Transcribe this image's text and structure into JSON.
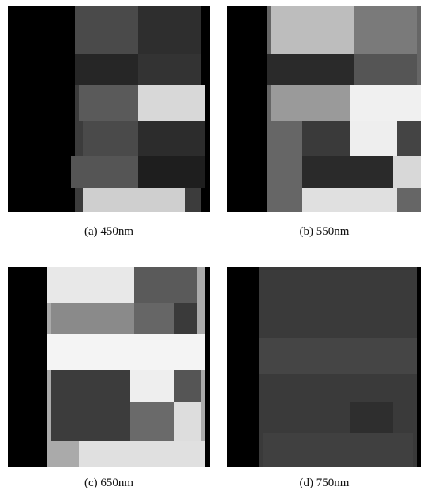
{
  "figure": {
    "panels": [
      {
        "caption": "(a)  450nm"
      },
      {
        "caption": "(b)  550nm"
      },
      {
        "caption": "(c)  650nm"
      },
      {
        "caption": "(d)  750nm"
      }
    ]
  }
}
